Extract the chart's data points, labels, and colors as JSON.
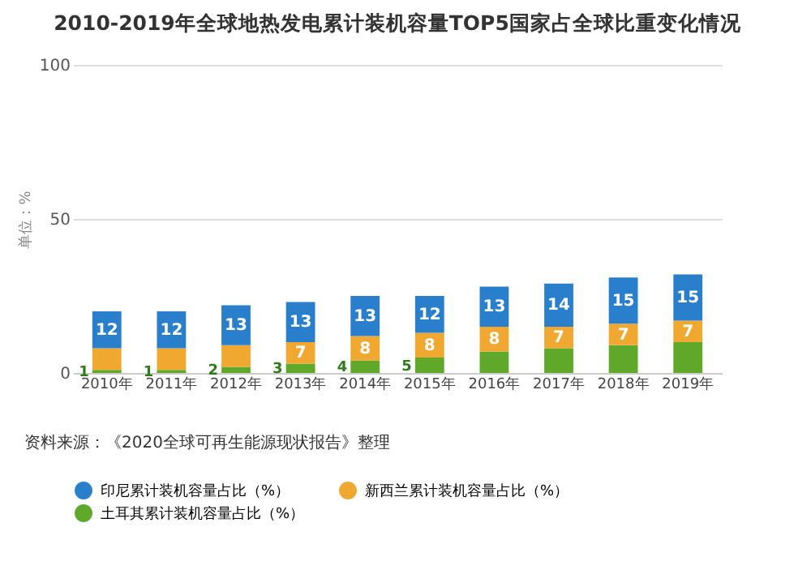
{
  "chart_data": {
    "type": "bar",
    "title": "2010-2019年全球地热发电累计装机容量TOP5国家占全球比重变化情况",
    "ylabel": "单位：%",
    "categories": [
      "2010年",
      "2011年",
      "2012年",
      "2013年",
      "2014年",
      "2015年",
      "2016年",
      "2017年",
      "2018年",
      "2019年"
    ],
    "stacked": true,
    "series": [
      {
        "name": "土耳其累计装机容量占比（%）",
        "color": "#5fa82a",
        "values": [
          1,
          1,
          2,
          3,
          4,
          5,
          7,
          8,
          9,
          10
        ],
        "value_labels": [
          "1",
          "1",
          "2",
          "3",
          "4",
          "5",
          null,
          null,
          null,
          null
        ]
      },
      {
        "name": "新西兰累计装机容量占比（%）",
        "color": "#f0a830",
        "values": [
          7,
          7,
          7,
          7,
          8,
          8,
          8,
          7,
          7,
          7
        ],
        "value_labels": [
          null,
          null,
          null,
          "7",
          "8",
          "8",
          "8",
          "7",
          "7",
          "7"
        ]
      },
      {
        "name": "印尼累计装机容量占比（%）",
        "color": "#2a7fcc",
        "values": [
          12,
          12,
          13,
          13,
          13,
          12,
          13,
          14,
          15,
          15
        ],
        "value_labels": [
          "12",
          "12",
          "13",
          "13",
          "13",
          "12",
          "13",
          "14",
          "15",
          "15"
        ]
      }
    ],
    "ylim": [
      0,
      100
    ],
    "yticks": [
      0,
      50,
      100
    ],
    "grid": "y",
    "legend": "bottom",
    "annotations": [
      "资料来源：《2020全球可再生能源现状报告》整理"
    ]
  }
}
